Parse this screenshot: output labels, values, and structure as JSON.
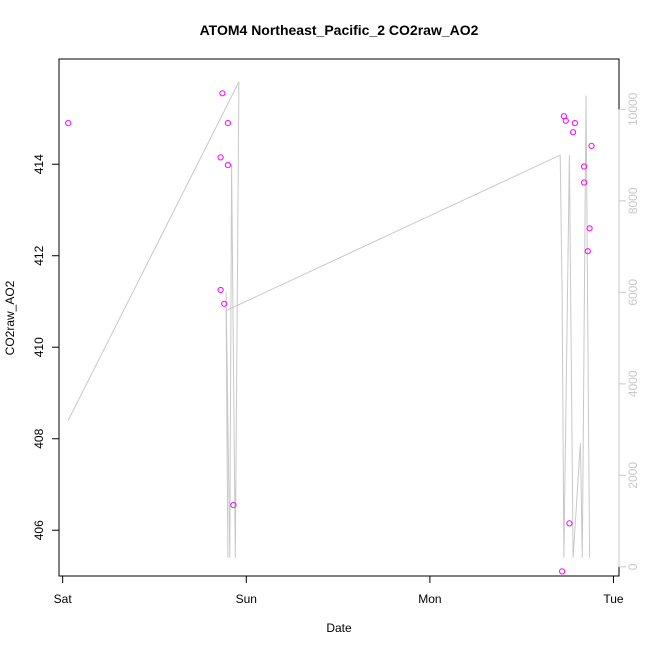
{
  "chart_data": {
    "type": "scatter",
    "title": "ATOM4 Northeast_Pacific_2 CO2raw_AO2",
    "xlabel": "Date",
    "ylabel": "CO2raw_AO2",
    "x_ticks": [
      "Sat",
      "Sun",
      "Mon",
      "Tue"
    ],
    "x_range_days": [
      -0.02,
      3.03
    ],
    "ylim": [
      405.0,
      416.3
    ],
    "y_ticks": [
      406,
      408,
      410,
      412,
      414
    ],
    "secondary_ylim": [
      -200,
      11100
    ],
    "secondary_y_ticks": [
      0,
      2000,
      4000,
      6000,
      8000,
      10000
    ],
    "grid": false,
    "colors": {
      "points": "#ff00ff",
      "line": "#c8c8c8",
      "secondary_axis": "#c8c8c8",
      "frame": "#000000"
    },
    "series": [
      {
        "role": "points",
        "axis": "left",
        "points": [
          {
            "x": 0.03,
            "y": 414.9
          },
          {
            "x": 0.87,
            "y": 415.55
          },
          {
            "x": 0.9,
            "y": 414.9
          },
          {
            "x": 0.86,
            "y": 414.15
          },
          {
            "x": 0.9,
            "y": 413.98
          },
          {
            "x": 0.86,
            "y": 411.25
          },
          {
            "x": 0.88,
            "y": 410.95
          },
          {
            "x": 0.93,
            "y": 406.55
          },
          {
            "x": 2.73,
            "y": 415.05
          },
          {
            "x": 2.74,
            "y": 414.95
          },
          {
            "x": 2.79,
            "y": 414.9
          },
          {
            "x": 2.78,
            "y": 414.7
          },
          {
            "x": 2.84,
            "y": 413.95
          },
          {
            "x": 2.84,
            "y": 413.6
          },
          {
            "x": 2.88,
            "y": 414.4
          },
          {
            "x": 2.87,
            "y": 412.6
          },
          {
            "x": 2.86,
            "y": 412.1
          },
          {
            "x": 2.76,
            "y": 406.15
          },
          {
            "x": 2.72,
            "y": 405.1
          }
        ]
      },
      {
        "role": "line",
        "axis": "right",
        "points": [
          {
            "x": 0.03,
            "y": 3200
          },
          {
            "x": 0.96,
            "y": 10600
          },
          {
            "x": 0.94,
            "y": 200
          },
          {
            "x": 0.92,
            "y": 8800
          },
          {
            "x": 0.91,
            "y": 200
          },
          {
            "x": 0.89,
            "y": 6000
          },
          {
            "x": 0.9,
            "y": 200
          },
          {
            "x": 0.89,
            "y": 5600
          },
          {
            "x": 2.71,
            "y": 9000
          },
          {
            "x": 2.72,
            "y": 6000
          },
          {
            "x": 2.73,
            "y": 200
          },
          {
            "x": 2.76,
            "y": 9000
          },
          {
            "x": 2.78,
            "y": 200
          },
          {
            "x": 2.82,
            "y": 2700
          },
          {
            "x": 2.83,
            "y": 200
          },
          {
            "x": 2.85,
            "y": 10300
          },
          {
            "x": 2.87,
            "y": 200
          }
        ]
      }
    ]
  }
}
